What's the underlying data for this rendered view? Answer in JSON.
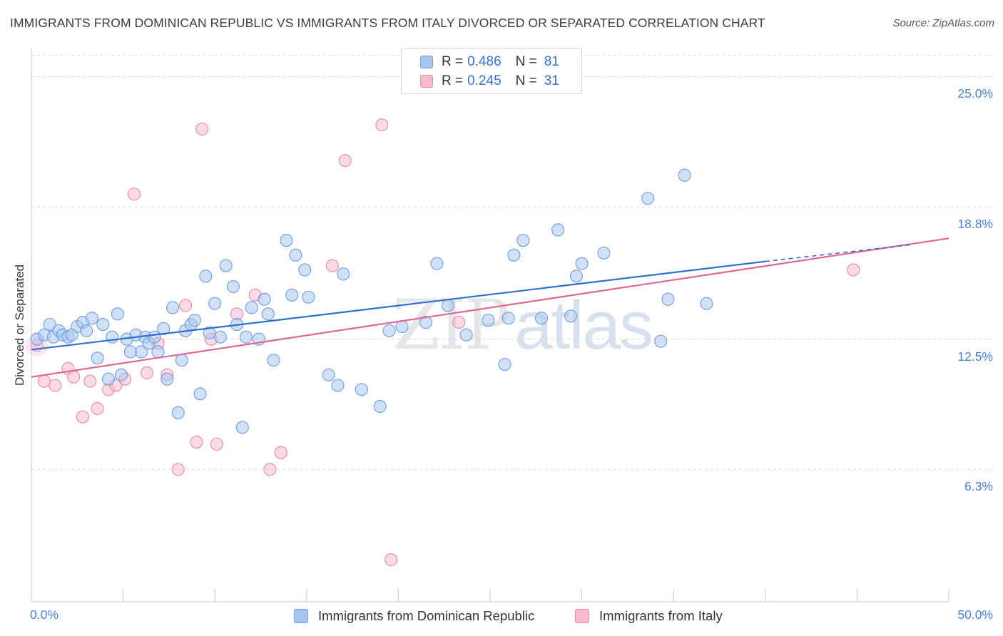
{
  "title": "IMMIGRANTS FROM DOMINICAN REPUBLIC VS IMMIGRANTS FROM ITALY DIVORCED OR SEPARATED CORRELATION CHART",
  "source": "Source: ZipAtlas.com",
  "watermark": {
    "zip": "ZIP",
    "atlas": "atlas"
  },
  "colors": {
    "blue_fill": "#a9c6ee",
    "blue_stroke": "#6f9ddc",
    "blue_line": "#2f6fcf",
    "pink_fill": "#f6bccd",
    "pink_stroke": "#e889a6",
    "pink_line": "#e06890",
    "tick_label": "#4a7fd0",
    "grid": "#d9d9d9"
  },
  "legend": {
    "rows": [
      {
        "r_label": "R =",
        "r_value": "0.486",
        "n_label": "N =",
        "n_value": "81"
      },
      {
        "r_label": "R =",
        "r_value": "0.245",
        "n_label": "N =",
        "n_value": "31"
      }
    ]
  },
  "bottom_legend": [
    "Immigrants from Dominican Republic",
    "Immigrants from Italy"
  ],
  "chart_data": {
    "type": "scatter",
    "title": "IMMIGRANTS FROM DOMINICAN REPUBLIC VS IMMIGRANTS FROM ITALY DIVORCED OR SEPARATED CORRELATION CHART",
    "xlabel": "",
    "ylabel": "Divorced or Separated",
    "xlim": [
      0,
      50
    ],
    "ylim": [
      0,
      26.2
    ],
    "x_tick_labels": [
      "0.0%",
      "50.0%"
    ],
    "y_ticks": [
      6.3,
      12.5,
      18.8,
      25.0
    ],
    "y_tick_labels": [
      "6.3%",
      "12.5%",
      "18.8%",
      "25.0%"
    ],
    "grid": true,
    "series": [
      {
        "name": "Immigrants from Dominican Republic",
        "R": 0.486,
        "N": 81,
        "trend": {
          "x": [
            0,
            40
          ],
          "y": [
            12.0,
            16.2
          ],
          "dashed_to": [
            48,
            17.0
          ]
        },
        "points": [
          [
            0.3,
            12.5
          ],
          [
            0.7,
            12.7
          ],
          [
            1.0,
            13.2
          ],
          [
            1.2,
            12.6
          ],
          [
            1.5,
            12.9
          ],
          [
            1.7,
            12.7
          ],
          [
            2.0,
            12.6
          ],
          [
            2.2,
            12.7
          ],
          [
            2.5,
            13.1
          ],
          [
            2.8,
            13.3
          ],
          [
            3.0,
            12.9
          ],
          [
            3.3,
            13.5
          ],
          [
            3.6,
            11.6
          ],
          [
            3.9,
            13.2
          ],
          [
            4.2,
            10.6
          ],
          [
            4.4,
            12.6
          ],
          [
            4.7,
            13.7
          ],
          [
            4.9,
            10.8
          ],
          [
            5.2,
            12.5
          ],
          [
            5.4,
            11.9
          ],
          [
            5.7,
            12.7
          ],
          [
            6.0,
            11.9
          ],
          [
            6.2,
            12.6
          ],
          [
            6.4,
            12.3
          ],
          [
            6.7,
            12.6
          ],
          [
            6.9,
            11.9
          ],
          [
            7.2,
            13.0
          ],
          [
            7.4,
            10.6
          ],
          [
            7.7,
            14.0
          ],
          [
            8.0,
            9.0
          ],
          [
            8.2,
            11.5
          ],
          [
            8.4,
            12.9
          ],
          [
            8.7,
            13.2
          ],
          [
            8.9,
            13.4
          ],
          [
            9.2,
            9.9
          ],
          [
            9.5,
            15.5
          ],
          [
            9.7,
            12.8
          ],
          [
            10.0,
            14.2
          ],
          [
            10.3,
            12.6
          ],
          [
            10.6,
            16.0
          ],
          [
            11.0,
            15.0
          ],
          [
            11.2,
            13.2
          ],
          [
            11.5,
            8.3
          ],
          [
            11.7,
            12.6
          ],
          [
            12.0,
            14.0
          ],
          [
            12.4,
            12.5
          ],
          [
            12.7,
            14.4
          ],
          [
            12.9,
            13.7
          ],
          [
            13.2,
            11.5
          ],
          [
            13.9,
            17.2
          ],
          [
            14.2,
            14.6
          ],
          [
            14.4,
            16.5
          ],
          [
            14.9,
            15.8
          ],
          [
            15.1,
            14.5
          ],
          [
            16.2,
            10.8
          ],
          [
            16.7,
            10.3
          ],
          [
            17.0,
            15.6
          ],
          [
            18.0,
            10.1
          ],
          [
            19.0,
            9.3
          ],
          [
            19.5,
            12.9
          ],
          [
            20.2,
            13.1
          ],
          [
            21.5,
            13.3
          ],
          [
            22.1,
            16.1
          ],
          [
            22.7,
            14.1
          ],
          [
            23.7,
            12.7
          ],
          [
            24.9,
            13.4
          ],
          [
            25.8,
            11.3
          ],
          [
            26.0,
            13.5
          ],
          [
            26.3,
            16.5
          ],
          [
            26.8,
            17.2
          ],
          [
            27.8,
            13.5
          ],
          [
            28.7,
            17.7
          ],
          [
            29.4,
            13.6
          ],
          [
            29.7,
            15.5
          ],
          [
            30.0,
            16.1
          ],
          [
            31.2,
            16.6
          ],
          [
            33.6,
            19.2
          ],
          [
            34.3,
            12.4
          ],
          [
            34.7,
            14.4
          ],
          [
            35.6,
            20.3
          ],
          [
            36.8,
            14.2
          ]
        ]
      },
      {
        "name": "Immigrants from Italy",
        "R": 0.245,
        "N": 31,
        "trend": {
          "x": [
            0,
            50
          ],
          "y": [
            10.7,
            17.3
          ]
        },
        "points": [
          [
            0.3,
            12.2
          ],
          [
            0.7,
            10.5
          ],
          [
            1.3,
            10.3
          ],
          [
            2.0,
            11.1
          ],
          [
            2.3,
            10.7
          ],
          [
            2.8,
            8.8
          ],
          [
            3.2,
            10.5
          ],
          [
            3.6,
            9.2
          ],
          [
            4.2,
            10.1
          ],
          [
            4.6,
            10.3
          ],
          [
            5.1,
            10.6
          ],
          [
            5.6,
            19.4
          ],
          [
            6.3,
            10.9
          ],
          [
            6.9,
            12.3
          ],
          [
            7.4,
            10.8
          ],
          [
            8.0,
            6.3
          ],
          [
            8.4,
            14.1
          ],
          [
            9.0,
            7.6
          ],
          [
            9.3,
            22.5
          ],
          [
            9.8,
            12.5
          ],
          [
            10.1,
            7.5
          ],
          [
            11.2,
            13.7
          ],
          [
            12.2,
            14.6
          ],
          [
            13.0,
            6.3
          ],
          [
            13.6,
            7.1
          ],
          [
            16.4,
            16.0
          ],
          [
            17.1,
            21.0
          ],
          [
            19.1,
            22.7
          ],
          [
            19.6,
            2.0
          ],
          [
            23.3,
            13.3
          ],
          [
            44.8,
            15.8
          ]
        ]
      }
    ]
  }
}
